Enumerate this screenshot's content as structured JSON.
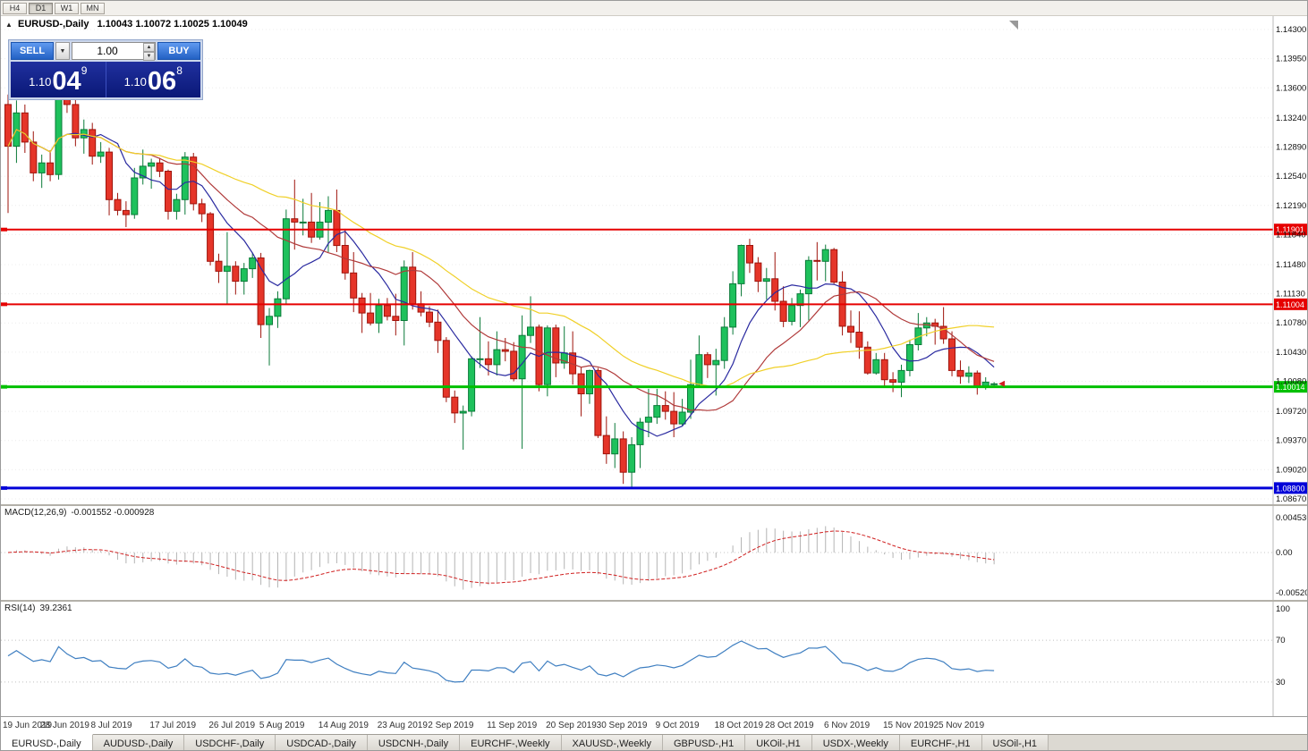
{
  "toolbar": {
    "timeframes": [
      {
        "label": "H4",
        "active": false
      },
      {
        "label": "D1",
        "active": true
      },
      {
        "label": "W1",
        "active": false
      },
      {
        "label": "MN",
        "active": false
      }
    ]
  },
  "chart": {
    "title_symbol": "EURUSD-,Daily",
    "title_ohlc": "1.10043 1.10072 1.10025 1.10049"
  },
  "trade_panel": {
    "sell_label": "SELL",
    "buy_label": "BUY",
    "volume": "1.00",
    "sell_price": {
      "base": "1.10",
      "big": "04",
      "sup": "9"
    },
    "buy_price": {
      "base": "1.10",
      "big": "06",
      "sup": "8"
    }
  },
  "indicators": {
    "macd": {
      "label": "MACD(12,26,9)",
      "values": "-0.001552 -0.000928",
      "axis_labels": [
        "0.004536",
        "0.00",
        "-0.005205"
      ],
      "fast": 12,
      "slow": 26,
      "signal": 9
    },
    "rsi": {
      "label": "RSI(14)",
      "value": "39.2361",
      "axis_labels": [
        "100",
        "70",
        "30"
      ],
      "levels": [
        70,
        30
      ],
      "period": 14
    }
  },
  "tabs": {
    "active_index": 0,
    "items": [
      "EURUSD-,Daily",
      "AUDUSD-,Daily",
      "USDCHF-,Daily",
      "USDCAD-,Daily",
      "USDCNH-,Daily",
      "EURCHF-,Weekly",
      "XAUUSD-,Weekly",
      "GBPUSD-,H1",
      "UKOil-,H1",
      "USDX-,Weekly",
      "EURCHF-,H1",
      "USOil-,H1"
    ]
  },
  "chart_data": {
    "type": "candlestick",
    "symbol": "EURUSD",
    "timeframe": "Daily",
    "ylim": [
      1.0867,
      1.143
    ],
    "price_ticks": [
      "1.14300",
      "1.13950",
      "1.13600",
      "1.13240",
      "1.12890",
      "1.12540",
      "1.12190",
      "1.11840",
      "1.11480",
      "1.11130",
      "1.10780",
      "1.10430",
      "1.10080",
      "1.09720",
      "1.09370",
      "1.09020",
      "1.08670"
    ],
    "hlines": [
      {
        "price": 1.11901,
        "label": "1.11901",
        "color": "#e60000",
        "width": 2
      },
      {
        "price": 1.11004,
        "label": "1.11004",
        "color": "#e60000",
        "width": 2
      },
      {
        "price": 1.10014,
        "label": "1.10014",
        "color": "#00c000",
        "width": 3
      },
      {
        "price": 1.088,
        "label": "1.08800",
        "color": "#0000d8",
        "width": 3
      }
    ],
    "moving_averages": [
      {
        "period": 8,
        "color": "#2a2aa0"
      },
      {
        "period": 17,
        "color": "#b03a3a"
      },
      {
        "period": 34,
        "color": "#f0d028"
      }
    ],
    "colors": {
      "bull": "#1ec15c",
      "bull_border": "#0a7a38",
      "bear": "#e53529",
      "bear_border": "#9e130b",
      "grid": "#ececec",
      "macd_hist": "#b4b4b4",
      "macd_signal": "#d02020",
      "rsi_line": "#3f7fc1"
    },
    "date_labels": [
      {
        "text": "19 Jun 2019",
        "index": 0
      },
      {
        "text": "28 Jun 2019",
        "index": 7
      },
      {
        "text": "8 Jul 2019",
        "index": 13
      },
      {
        "text": "17 Jul 2019",
        "index": 20
      },
      {
        "text": "26 Jul 2019",
        "index": 27
      },
      {
        "text": "5 Aug 2019",
        "index": 33
      },
      {
        "text": "14 Aug 2019",
        "index": 40
      },
      {
        "text": "23 Aug 2019",
        "index": 47
      },
      {
        "text": "2 Sep 2019",
        "index": 53
      },
      {
        "text": "11 Sep 2019",
        "index": 60
      },
      {
        "text": "20 Sep 2019",
        "index": 67
      },
      {
        "text": "30 Sep 2019",
        "index": 73
      },
      {
        "text": "9 Oct 2019",
        "index": 80
      },
      {
        "text": "18 Oct 2019",
        "index": 87
      },
      {
        "text": "28 Oct 2019",
        "index": 93
      },
      {
        "text": "6 Nov 2019",
        "index": 100
      },
      {
        "text": "15 Nov 2019",
        "index": 107
      },
      {
        "text": "25 Nov 2019",
        "index": 113
      }
    ],
    "candles": [
      [
        1.134,
        1.1352,
        1.121,
        1.129
      ],
      [
        1.129,
        1.1345,
        1.127,
        1.133
      ],
      [
        1.133,
        1.134,
        1.1282,
        1.1295
      ],
      [
        1.1295,
        1.1308,
        1.1248,
        1.1258
      ],
      [
        1.1258,
        1.128,
        1.124,
        1.127
      ],
      [
        1.127,
        1.1285,
        1.1248,
        1.1256
      ],
      [
        1.1256,
        1.1402,
        1.125,
        1.1395
      ],
      [
        1.1395,
        1.1412,
        1.133,
        1.134
      ],
      [
        1.134,
        1.1365,
        1.129,
        1.13
      ],
      [
        1.13,
        1.1322,
        1.1281,
        1.131
      ],
      [
        1.131,
        1.1318,
        1.1268,
        1.1278
      ],
      [
        1.1278,
        1.1295,
        1.127,
        1.1283
      ],
      [
        1.1283,
        1.1288,
        1.1207,
        1.1226
      ],
      [
        1.1226,
        1.1234,
        1.1207,
        1.1213
      ],
      [
        1.1213,
        1.1224,
        1.1193,
        1.1208
      ],
      [
        1.1208,
        1.1264,
        1.1203,
        1.1252
      ],
      [
        1.1252,
        1.1286,
        1.1244,
        1.1266
      ],
      [
        1.1266,
        1.1275,
        1.1239,
        1.127
      ],
      [
        1.127,
        1.1276,
        1.1253,
        1.126
      ],
      [
        1.126,
        1.1262,
        1.1202,
        1.1212
      ],
      [
        1.1212,
        1.1233,
        1.1202,
        1.1226
      ],
      [
        1.1226,
        1.1283,
        1.1208,
        1.1277
      ],
      [
        1.1277,
        1.1282,
        1.1213,
        1.1221
      ],
      [
        1.1221,
        1.1227,
        1.1199,
        1.1209
      ],
      [
        1.1209,
        1.1211,
        1.1147,
        1.1152
      ],
      [
        1.1152,
        1.1161,
        1.1126,
        1.114
      ],
      [
        1.114,
        1.1187,
        1.1101,
        1.1146
      ],
      [
        1.1146,
        1.1152,
        1.1112,
        1.1128
      ],
      [
        1.1128,
        1.115,
        1.1112,
        1.1143
      ],
      [
        1.1143,
        1.1162,
        1.1132,
        1.1156
      ],
      [
        1.1156,
        1.1162,
        1.106,
        1.1076
      ],
      [
        1.1076,
        1.1096,
        1.1027,
        1.1086
      ],
      [
        1.1086,
        1.1116,
        1.1072,
        1.1107
      ],
      [
        1.1107,
        1.1214,
        1.1101,
        1.1203
      ],
      [
        1.1203,
        1.125,
        1.1166,
        1.1199
      ],
      [
        1.1199,
        1.1227,
        1.1183,
        1.1199
      ],
      [
        1.1199,
        1.1234,
        1.1174,
        1.1181
      ],
      [
        1.1181,
        1.1223,
        1.1178,
        1.1199
      ],
      [
        1.1199,
        1.123,
        1.1163,
        1.1213
      ],
      [
        1.1213,
        1.1238,
        1.1163,
        1.1171
      ],
      [
        1.1171,
        1.1191,
        1.113,
        1.1138
      ],
      [
        1.1138,
        1.1163,
        1.1091,
        1.1108
      ],
      [
        1.1108,
        1.1114,
        1.1066,
        1.109
      ],
      [
        1.109,
        1.1114,
        1.1075,
        1.1078
      ],
      [
        1.1078,
        1.1107,
        1.1066,
        1.1099
      ],
      [
        1.1099,
        1.1108,
        1.1081,
        1.1086
      ],
      [
        1.1086,
        1.1113,
        1.1063,
        1.1081
      ],
      [
        1.1081,
        1.1153,
        1.1051,
        1.1145
      ],
      [
        1.1145,
        1.1163,
        1.1094,
        1.1101
      ],
      [
        1.1101,
        1.1116,
        1.1086,
        1.1091
      ],
      [
        1.1091,
        1.1098,
        1.1073,
        1.1079
      ],
      [
        1.1079,
        1.1094,
        1.1042,
        1.1057
      ],
      [
        1.1057,
        1.1061,
        1.0983,
        1.0989
      ],
      [
        1.0989,
        1.0997,
        1.0958,
        1.097
      ],
      [
        1.097,
        1.0979,
        1.0926,
        1.0972
      ],
      [
        1.0972,
        1.1038,
        1.0966,
        1.1035
      ],
      [
        1.1035,
        1.1085,
        1.1024,
        1.1035
      ],
      [
        1.1035,
        1.1056,
        1.1015,
        1.1028
      ],
      [
        1.1028,
        1.1068,
        1.1015,
        1.1046
      ],
      [
        1.1046,
        1.106,
        1.1032,
        1.1044
      ],
      [
        1.1044,
        1.1055,
        1.1008,
        1.1011
      ],
      [
        1.1011,
        1.1087,
        1.0927,
        1.1063
      ],
      [
        1.1063,
        1.111,
        1.1054,
        1.1073
      ],
      [
        1.1073,
        1.1076,
        1.0996,
        1.1004
      ],
      [
        1.1004,
        1.1075,
        1.099,
        1.1072
      ],
      [
        1.1072,
        1.1076,
        1.1013,
        1.103
      ],
      [
        1.103,
        1.1074,
        1.1023,
        1.1042
      ],
      [
        1.1042,
        1.1068,
        1.1004,
        1.1017
      ],
      [
        1.1017,
        1.1025,
        1.0966,
        1.0993
      ],
      [
        1.0993,
        1.1022,
        1.0981,
        1.1021
      ],
      [
        1.1021,
        1.1024,
        1.094,
        1.0943
      ],
      [
        1.0943,
        1.0966,
        1.0909,
        1.0921
      ],
      [
        1.0921,
        1.0958,
        1.0904,
        1.0939
      ],
      [
        1.0939,
        1.0948,
        1.0885,
        1.0899
      ],
      [
        1.0899,
        1.0941,
        1.0879,
        1.0932
      ],
      [
        1.0932,
        1.0964,
        1.0904,
        1.0959
      ],
      [
        1.0959,
        1.0999,
        1.0941,
        1.0965
      ],
      [
        1.0965,
        1.0999,
        1.0957,
        1.0979
      ],
      [
        1.0979,
        1.0996,
        1.0962,
        1.0972
      ],
      [
        1.0972,
        1.0995,
        1.0941,
        1.0957
      ],
      [
        1.0957,
        1.0987,
        1.0955,
        1.0971
      ],
      [
        1.0971,
        1.1034,
        1.0963,
        1.1004
      ],
      [
        1.1004,
        1.1063,
        1.1002,
        1.104
      ],
      [
        1.104,
        1.1043,
        1.1012,
        1.1028
      ],
      [
        1.1028,
        1.1047,
        1.0991,
        1.1033
      ],
      [
        1.1033,
        1.1085,
        1.1023,
        1.1073
      ],
      [
        1.1073,
        1.114,
        1.1064,
        1.1125
      ],
      [
        1.1125,
        1.1172,
        1.111,
        1.1171
      ],
      [
        1.1171,
        1.1179,
        1.1138,
        1.115
      ],
      [
        1.115,
        1.1157,
        1.1115,
        1.1128
      ],
      [
        1.1128,
        1.1144,
        1.1106,
        1.1131
      ],
      [
        1.1131,
        1.1163,
        1.1093,
        1.1104
      ],
      [
        1.1104,
        1.1122,
        1.1073,
        1.108
      ],
      [
        1.108,
        1.1108,
        1.1075,
        1.1099
      ],
      [
        1.1099,
        1.1118,
        1.1073,
        1.1113
      ],
      [
        1.1113,
        1.1158,
        1.1081,
        1.1153
      ],
      [
        1.1153,
        1.1175,
        1.1129,
        1.1152
      ],
      [
        1.1152,
        1.1172,
        1.1128,
        1.1166
      ],
      [
        1.1166,
        1.1168,
        1.1125,
        1.1127
      ],
      [
        1.1127,
        1.114,
        1.1063,
        1.1074
      ],
      [
        1.1074,
        1.1093,
        1.1054,
        1.1067
      ],
      [
        1.1067,
        1.1092,
        1.1035,
        1.1049
      ],
      [
        1.1049,
        1.1056,
        1.1016,
        1.1018
      ],
      [
        1.1018,
        1.1042,
        1.1016,
        1.1034
      ],
      [
        1.1034,
        1.1042,
        1.1002,
        1.101
      ],
      [
        1.101,
        1.1019,
        1.0995,
        1.1007
      ],
      [
        1.1007,
        1.1028,
        1.0989,
        1.1021
      ],
      [
        1.1021,
        1.1058,
        1.1014,
        1.1052
      ],
      [
        1.1052,
        1.109,
        1.1045,
        1.1072
      ],
      [
        1.1072,
        1.1085,
        1.1062,
        1.1078
      ],
      [
        1.1078,
        1.1083,
        1.1052,
        1.1074
      ],
      [
        1.1074,
        1.1097,
        1.1053,
        1.1059
      ],
      [
        1.1059,
        1.1068,
        1.1014,
        1.1021
      ],
      [
        1.1021,
        1.1033,
        1.1005,
        1.1014
      ],
      [
        1.1014,
        1.1026,
        1.1006,
        1.1018
      ],
      [
        1.1018,
        1.1021,
        1.0992,
        1.1002
      ],
      [
        1.1002,
        1.1013,
        1.0998,
        1.1007
      ],
      [
        1.1005,
        1.1007,
        1.1002,
        1.1005
      ]
    ]
  }
}
